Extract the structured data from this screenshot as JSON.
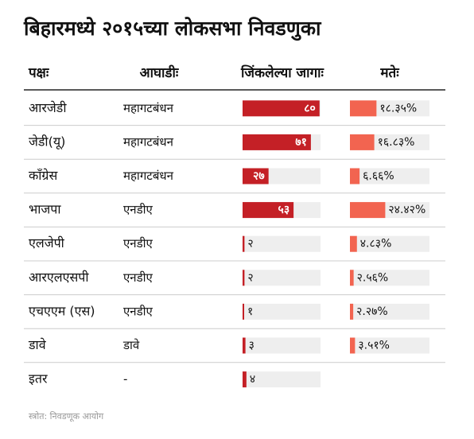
{
  "chart_data": {
    "type": "bar-table",
    "title": "बिहारमध्ये २०१५च्या लोकसभा निवडणुका",
    "party_header": "पक्षः",
    "alliance_header": "आघाडीः",
    "categories": [
      "आरजेडी",
      "जेडी(यू)",
      "कॉंग्रेस",
      "भाजपा",
      "एलजेपी",
      "आरएलएसपी",
      "एचएएम (एस)",
      "डावे",
      "इतर"
    ],
    "alliances": [
      "महागटबंधन",
      "महागटबंधन",
      "महागटबंधन",
      "एनडीए",
      "एनडीए",
      "एनडीए",
      "एनडीए",
      "डावे",
      "-"
    ],
    "series": [
      {
        "name": "जिंकलेल्या जागाः",
        "color": "#c42026",
        "xlim": [
          0,
          81
        ],
        "values": [
          80,
          71,
          27,
          53,
          2,
          2,
          1,
          3,
          4
        ],
        "value_labels": [
          "८०",
          "७१",
          "२७",
          "५३",
          "२",
          "२",
          "१",
          "३",
          "४"
        ]
      },
      {
        "name": "मतेः",
        "color": "#f26450",
        "xlim": [
          0,
          55
        ],
        "values": [
          18.35,
          16.83,
          6.66,
          24.42,
          4.83,
          2.56,
          2.27,
          3.51,
          null
        ],
        "value_labels": [
          "१८.३५%",
          "१६.८३%",
          "६.६६%",
          "२४.४२%",
          "४.८३%",
          "२.५६%",
          "२.२७%",
          "३.५१%",
          null
        ]
      }
    ],
    "source": "स्त्रोत: निवडणूक आयोग"
  }
}
